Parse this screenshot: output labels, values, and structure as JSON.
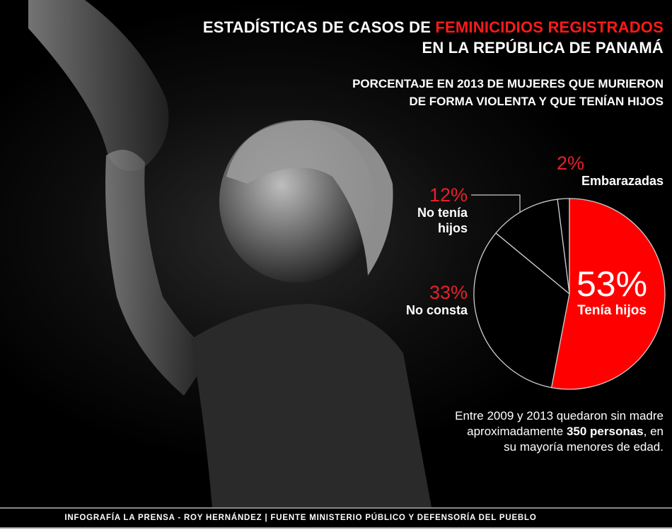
{
  "header": {
    "title_part1": "ESTADÍSTICAS DE CASOS DE ",
    "title_highlight": "FEMINICIDIOS REGISTRADOS",
    "title_line2": "EN LA REPÚBLICA DE PANAMÁ",
    "subtitle_line1": "PORCENTAJE EN 2013 DE MUJERES QUE MURIERON",
    "subtitle_line2": "DE FORMA VIOLENTA Y QUE TENÍAN HIJOS"
  },
  "chart_data": {
    "type": "pie",
    "title": "PORCENTAJE EN 2013 DE MUJERES QUE MURIERON DE FORMA VIOLENTA Y QUE TENÍAN HIJOS",
    "slices": [
      {
        "label": "Tenía hijos",
        "value": 53,
        "display": "53%",
        "color": "#ff0000"
      },
      {
        "label": "No consta",
        "value": 33,
        "display": "33%",
        "color": "#000000"
      },
      {
        "label": "No tenía hijos",
        "value": 12,
        "display": "12%",
        "color": "#000000"
      },
      {
        "label": "Embarazadas",
        "value": 2,
        "display": "2%",
        "color": "#000000"
      }
    ],
    "start": "12 o'clock, clockwise",
    "outline_color": "#cccccc"
  },
  "labels": {
    "no_tenia_line1": "No tenía",
    "no_tenia_line2": "hijos"
  },
  "note": {
    "part1": "Entre 2009 y 2013 quedaron sin madre aproximadamente ",
    "bold": "350 personas",
    "part2": ", en su mayoría menores de edad."
  },
  "footer": "INFOGRAFÍA LA PRENSA - ROY HERNÁNDEZ | FUENTE MINISTERIO PÚBLICO Y DEFENSORÍA DEL PUEBLO",
  "colors": {
    "accent": "#e8202a",
    "background": "#000000"
  }
}
